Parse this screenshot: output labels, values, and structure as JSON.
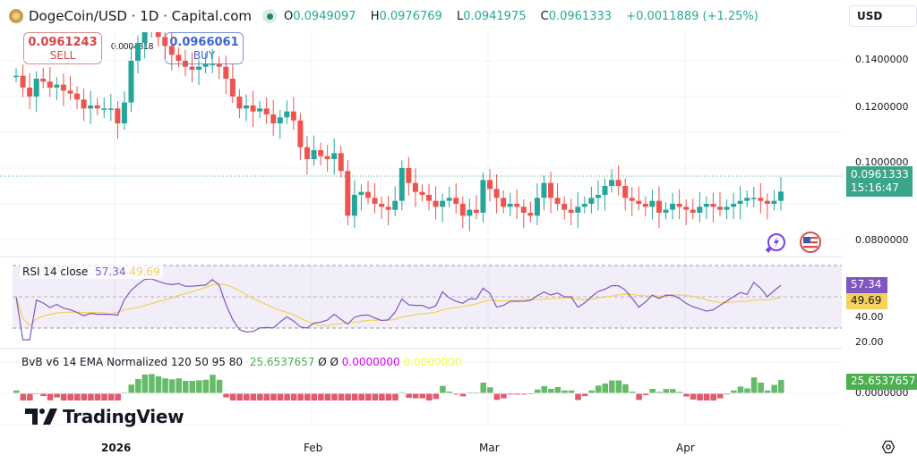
{
  "header": {
    "symbol_title": "DogeCoin/USD · 1D · Capital.com",
    "ohlc": {
      "o_label": "O",
      "o": "0.0949097",
      "h_label": "H",
      "h": "0.0976769",
      "l_label": "L",
      "l": "0.0941975",
      "c_label": "C",
      "c": "0.0961333",
      "change": "+0.0011889 (+1.25%)"
    },
    "currency": "USD"
  },
  "trade": {
    "sell_price": "0.0961243",
    "sell_label": "SELL",
    "buy_price": "0.0966061",
    "buy_label": "BUY",
    "spread": "0.0004818"
  },
  "price_axis": {
    "ticks": [
      "0.1400000",
      "0.1200000",
      "0.1000000",
      "0.0800000"
    ],
    "last_price": "0.0961333",
    "countdown": "15:16:47"
  },
  "rsi": {
    "label": "RSI 14 close",
    "value": "57.34",
    "ma_value": "49.69",
    "axis_ticks": [
      "40.00",
      "20.00"
    ]
  },
  "bvb": {
    "label": "BvB v6 14 EMA Normalized 120 50 95 80",
    "value": "25.6537657",
    "sym1": "Ø",
    "sym2": "Ø",
    "v2": "0.0000000",
    "v3": "0.0000000",
    "axis_tick": "0.0000000"
  },
  "time_axis": [
    "2026",
    "Feb",
    "Mar",
    "Apr"
  ],
  "branding": "TradingView",
  "colors": {
    "up": "#26a69a",
    "down": "#ef5350",
    "rsi": "#7e57c2",
    "rsi_ma": "#f5d25c",
    "bvb_pos": "#66bb6a",
    "bvb_neg": "#e25a6c",
    "price_tag": "#3ba58a"
  },
  "chart_data": [
    {
      "type": "candlestick",
      "title": "DogeCoin/USD · 1D · Capital.com",
      "x_ticks": [
        "2026",
        "Feb",
        "Mar",
        "Apr"
      ],
      "ylim": [
        0.075,
        0.152
      ],
      "y_ticks": [
        0.08,
        0.1,
        0.12,
        0.14
      ],
      "last": 0.0961333,
      "ohlc_sample_last": {
        "open": 0.0949097,
        "high": 0.0976769,
        "low": 0.0941975,
        "close": 0.0961333
      },
      "approx_closes": [
        0.135,
        0.131,
        0.128,
        0.134,
        0.133,
        0.131,
        0.132,
        0.13,
        0.129,
        0.127,
        0.124,
        0.125,
        0.124,
        0.124,
        0.124,
        0.119,
        0.126,
        0.14,
        0.146,
        0.15,
        0.152,
        0.148,
        0.145,
        0.142,
        0.14,
        0.138,
        0.137,
        0.138,
        0.139,
        0.139,
        0.138,
        0.134,
        0.128,
        0.124,
        0.125,
        0.123,
        0.124,
        0.122,
        0.119,
        0.121,
        0.123,
        0.12,
        0.111,
        0.107,
        0.11,
        0.108,
        0.107,
        0.109,
        0.103,
        0.088,
        0.095,
        0.096,
        0.094,
        0.092,
        0.091,
        0.09,
        0.093,
        0.104,
        0.099,
        0.096,
        0.095,
        0.093,
        0.091,
        0.093,
        0.094,
        0.092,
        0.088,
        0.09,
        0.089,
        0.1,
        0.097,
        0.094,
        0.091,
        0.092,
        0.091,
        0.089,
        0.088,
        0.094,
        0.099,
        0.094,
        0.092,
        0.09,
        0.089,
        0.091,
        0.092,
        0.094,
        0.095,
        0.098,
        0.1,
        0.098,
        0.094,
        0.093,
        0.092,
        0.091,
        0.093,
        0.089,
        0.09,
        0.092,
        0.091,
        0.09,
        0.089,
        0.091,
        0.092,
        0.091,
        0.09,
        0.091,
        0.092,
        0.093,
        0.094,
        0.094,
        0.093,
        0.092,
        0.093,
        0.0961
      ]
    },
    {
      "type": "line",
      "title": "RSI 14 close",
      "ylim": [
        20,
        80
      ],
      "bands": [
        30,
        50,
        70
      ],
      "series": [
        {
          "name": "RSI",
          "last": 57.34
        },
        {
          "name": "RSI MA",
          "last": 49.69
        }
      ]
    },
    {
      "type": "bar",
      "title": "BvB v6 14 EMA Normalized 120 50 95 80",
      "last": 25.6537657,
      "zero_tick": "0.0000000"
    }
  ]
}
